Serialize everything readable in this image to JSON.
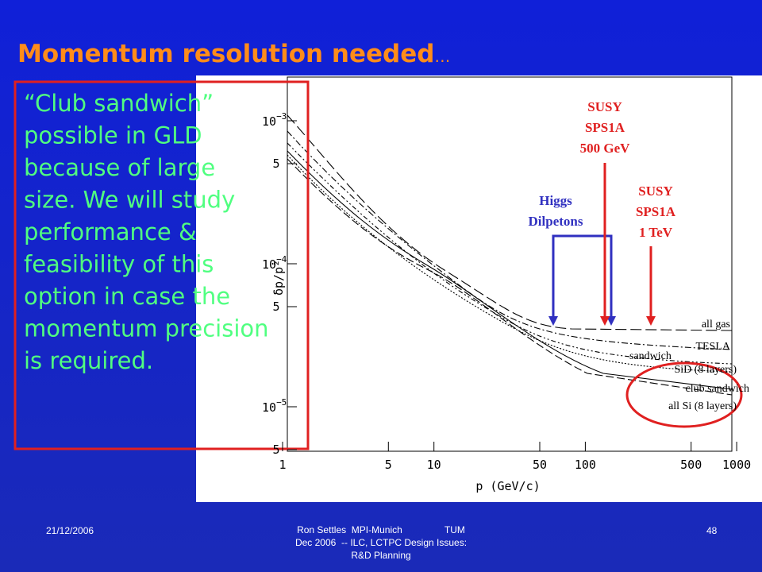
{
  "slide": {
    "title": "Momentum resolution needed",
    "title_ellipsis": "…",
    "callout_lines": [
      "“Club sandwich”",
      "possible in GLD",
      "because of large",
      "size.  We will study",
      "performance &",
      "feasibility of this",
      "option in case the",
      "momentum precision",
      "is required."
    ],
    "plot": {
      "y_axis_label": "δp/p²",
      "x_axis_label": "p (GeV/c)",
      "x_ticks": [
        "1",
        "5",
        "10",
        "50",
        "100",
        "500",
        "1000"
      ],
      "y_ticks": [
        {
          "base": "10",
          "exp": "−3"
        },
        "5",
        {
          "base": "10",
          "exp": "−4"
        },
        "5",
        {
          "base": "10",
          "exp": "−5"
        },
        "5"
      ],
      "curve_labels": [
        "all gas",
        "TESLA",
        "sandwich",
        "SiD (8 layers)",
        "club sandwich",
        "all Si (8 layers)"
      ],
      "higgs_label": [
        "Higgs",
        "Dilpetons"
      ],
      "susy_500_label": [
        "SUSY",
        "SPS1A",
        "500 GeV"
      ],
      "susy_1tev_label": [
        "SUSY",
        "SPS1A",
        "1 TeV"
      ]
    },
    "footer": {
      "date": "21/12/2006",
      "center_lines": [
        "Ron Settles  MPI-Munich                TUM",
        "Dec 2006  -- ILC, LCTPC Design Issues:",
        "R&D Planning"
      ],
      "page": "48"
    }
  }
}
